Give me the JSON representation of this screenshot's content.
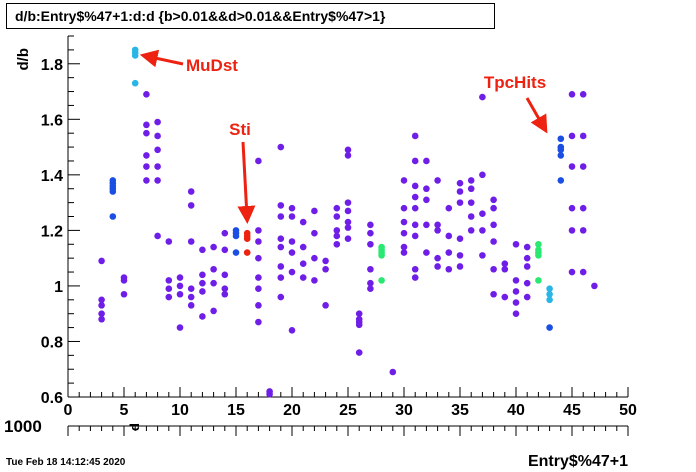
{
  "title": "d/b:Entry$%47+1:d:d {b>0.01&&d>0.01&&Entry$%47>1}",
  "footer_timestamp": "Tue Feb 18 14:12:45 2020",
  "colors": {
    "annotation": "#ee2211"
  },
  "chart_data": {
    "type": "scatter",
    "title": "d/b:Entry$%47+1:d:d {b>0.01&&d>0.01&&Entry$%47>1}",
    "xlabel": "Entry$%47+1",
    "ylabel": "d/b",
    "xlim": [
      0,
      50
    ],
    "ylim": [
      0.6,
      1.9
    ],
    "x_ticks": [
      "0",
      "5",
      "10",
      "15",
      "20",
      "25",
      "30",
      "35",
      "40",
      "45",
      "50"
    ],
    "y_ticks": [
      "0.6",
      "0.8",
      "1",
      "1.2",
      "1.4",
      "1.6",
      "1.8"
    ],
    "bottom_axis_labels": {
      "left_value": "1000",
      "marker": "d"
    },
    "grid": false,
    "annotations": [
      {
        "text": "MuDst",
        "point_to": [
          6,
          1.83
        ]
      },
      {
        "text": "Sti",
        "point_to": [
          16,
          1.2
        ]
      },
      {
        "text": "TpcHits",
        "point_to": [
          43,
          1.56
        ]
      }
    ],
    "points": [
      [
        3,
        1.09,
        "#6f1ee8"
      ],
      [
        3,
        0.95,
        "#6f1ee8"
      ],
      [
        3,
        0.93,
        "#6f1ee8"
      ],
      [
        3,
        0.9,
        "#6f1ee8"
      ],
      [
        3,
        0.88,
        "#6f1ee8"
      ],
      [
        4,
        1.38,
        "#1b4ee2"
      ],
      [
        4,
        1.37,
        "#1b4ee2"
      ],
      [
        4,
        1.36,
        "#1b4ee2"
      ],
      [
        4,
        1.35,
        "#1b4ee2"
      ],
      [
        4,
        1.34,
        "#1b4ee2"
      ],
      [
        4,
        1.25,
        "#1b4ee2"
      ],
      [
        5,
        1.03,
        "#6f1ee8"
      ],
      [
        5,
        1.02,
        "#6f1ee8"
      ],
      [
        5,
        0.97,
        "#6f1ee8"
      ],
      [
        6,
        1.85,
        "#29b6e6"
      ],
      [
        6,
        1.84,
        "#29b6e6"
      ],
      [
        6,
        1.83,
        "#29b6e6"
      ],
      [
        6,
        1.73,
        "#29b6e6"
      ],
      [
        7,
        1.69,
        "#6f1ee8"
      ],
      [
        7,
        1.58,
        "#6f1ee8"
      ],
      [
        7,
        1.55,
        "#6f1ee8"
      ],
      [
        7,
        1.47,
        "#6f1ee8"
      ],
      [
        7,
        1.43,
        "#6f1ee8"
      ],
      [
        7,
        1.38,
        "#6f1ee8"
      ],
      [
        8,
        1.59,
        "#6f1ee8"
      ],
      [
        8,
        1.54,
        "#6f1ee8"
      ],
      [
        8,
        1.49,
        "#6f1ee8"
      ],
      [
        8,
        1.43,
        "#6f1ee8"
      ],
      [
        8,
        1.38,
        "#6f1ee8"
      ],
      [
        8,
        1.18,
        "#6f1ee8"
      ],
      [
        9,
        1.16,
        "#6f1ee8"
      ],
      [
        9,
        1.02,
        "#6f1ee8"
      ],
      [
        9,
        0.99,
        "#6f1ee8"
      ],
      [
        9,
        0.96,
        "#6f1ee8"
      ],
      [
        10,
        1.03,
        "#6f1ee8"
      ],
      [
        10,
        1.0,
        "#6f1ee8"
      ],
      [
        10,
        0.97,
        "#6f1ee8"
      ],
      [
        10,
        0.85,
        "#6f1ee8"
      ],
      [
        11,
        1.34,
        "#6f1ee8"
      ],
      [
        11,
        1.29,
        "#6f1ee8"
      ],
      [
        11,
        1.16,
        "#6f1ee8"
      ],
      [
        11,
        0.99,
        "#6f1ee8"
      ],
      [
        11,
        0.96,
        "#6f1ee8"
      ],
      [
        11,
        0.93,
        "#6f1ee8"
      ],
      [
        12,
        1.13,
        "#6f1ee8"
      ],
      [
        12,
        1.04,
        "#6f1ee8"
      ],
      [
        12,
        1.01,
        "#6f1ee8"
      ],
      [
        12,
        0.98,
        "#6f1ee8"
      ],
      [
        12,
        0.89,
        "#6f1ee8"
      ],
      [
        13,
        1.14,
        "#6f1ee8"
      ],
      [
        13,
        1.06,
        "#6f1ee8"
      ],
      [
        13,
        1.01,
        "#6f1ee8"
      ],
      [
        13,
        0.91,
        "#6f1ee8"
      ],
      [
        14,
        1.19,
        "#6f1ee8"
      ],
      [
        14,
        1.13,
        "#6f1ee8"
      ],
      [
        14,
        1.04,
        "#6f1ee8"
      ],
      [
        14,
        0.99,
        "#6f1ee8"
      ],
      [
        14,
        0.97,
        "#6f1ee8"
      ],
      [
        15,
        1.2,
        "#1b4ee2"
      ],
      [
        15,
        1.19,
        "#1b4ee2"
      ],
      [
        15,
        1.18,
        "#1b4ee2"
      ],
      [
        15,
        1.12,
        "#1b4ee2"
      ],
      [
        16,
        1.19,
        "#ee2211"
      ],
      [
        16,
        1.18,
        "#ee2211"
      ],
      [
        16,
        1.17,
        "#ee2211"
      ],
      [
        16,
        1.12,
        "#ee2211"
      ],
      [
        17,
        1.45,
        "#6f1ee8"
      ],
      [
        17,
        1.2,
        "#6f1ee8"
      ],
      [
        17,
        1.16,
        "#6f1ee8"
      ],
      [
        17,
        1.1,
        "#6f1ee8"
      ],
      [
        17,
        1.03,
        "#6f1ee8"
      ],
      [
        17,
        0.99,
        "#6f1ee8"
      ],
      [
        17,
        0.93,
        "#6f1ee8"
      ],
      [
        17,
        0.87,
        "#6f1ee8"
      ],
      [
        18,
        0.62,
        "#6f1ee8"
      ],
      [
        18,
        0.61,
        "#6f1ee8"
      ],
      [
        19,
        1.5,
        "#6f1ee8"
      ],
      [
        19,
        1.29,
        "#6f1ee8"
      ],
      [
        19,
        1.25,
        "#6f1ee8"
      ],
      [
        19,
        1.17,
        "#6f1ee8"
      ],
      [
        19,
        1.14,
        "#6f1ee8"
      ],
      [
        19,
        1.07,
        "#6f1ee8"
      ],
      [
        19,
        1.03,
        "#6f1ee8"
      ],
      [
        19,
        0.96,
        "#6f1ee8"
      ],
      [
        20,
        1.28,
        "#6f1ee8"
      ],
      [
        20,
        1.25,
        "#6f1ee8"
      ],
      [
        20,
        1.16,
        "#6f1ee8"
      ],
      [
        20,
        1.12,
        "#6f1ee8"
      ],
      [
        20,
        1.05,
        "#6f1ee8"
      ],
      [
        20,
        0.84,
        "#6f1ee8"
      ],
      [
        21,
        1.23,
        "#6f1ee8"
      ],
      [
        21,
        1.14,
        "#6f1ee8"
      ],
      [
        21,
        1.08,
        "#6f1ee8"
      ],
      [
        21,
        1.03,
        "#6f1ee8"
      ],
      [
        22,
        1.27,
        "#6f1ee8"
      ],
      [
        22,
        1.19,
        "#6f1ee8"
      ],
      [
        22,
        1.1,
        "#6f1ee8"
      ],
      [
        22,
        1.02,
        "#6f1ee8"
      ],
      [
        23,
        1.09,
        "#6f1ee8"
      ],
      [
        23,
        1.06,
        "#6f1ee8"
      ],
      [
        23,
        0.93,
        "#6f1ee8"
      ],
      [
        24,
        1.28,
        "#6f1ee8"
      ],
      [
        24,
        1.25,
        "#6f1ee8"
      ],
      [
        24,
        1.2,
        "#6f1ee8"
      ],
      [
        24,
        1.18,
        "#6f1ee8"
      ],
      [
        24,
        1.15,
        "#6f1ee8"
      ],
      [
        25,
        1.49,
        "#6f1ee8"
      ],
      [
        25,
        1.47,
        "#6f1ee8"
      ],
      [
        25,
        1.3,
        "#6f1ee8"
      ],
      [
        25,
        1.27,
        "#6f1ee8"
      ],
      [
        25,
        1.23,
        "#6f1ee8"
      ],
      [
        25,
        1.21,
        "#6f1ee8"
      ],
      [
        25,
        1.17,
        "#6f1ee8"
      ],
      [
        26,
        0.9,
        "#6f1ee8"
      ],
      [
        26,
        0.88,
        "#6f1ee8"
      ],
      [
        26,
        0.87,
        "#6f1ee8"
      ],
      [
        26,
        0.86,
        "#6f1ee8"
      ],
      [
        26,
        0.76,
        "#6f1ee8"
      ],
      [
        27,
        1.22,
        "#6f1ee8"
      ],
      [
        27,
        1.19,
        "#6f1ee8"
      ],
      [
        27,
        1.15,
        "#6f1ee8"
      ],
      [
        27,
        1.06,
        "#6f1ee8"
      ],
      [
        27,
        1.01,
        "#6f1ee8"
      ],
      [
        27,
        0.99,
        "#6f1ee8"
      ],
      [
        28,
        1.14,
        "#2ae872"
      ],
      [
        28,
        1.13,
        "#2ae872"
      ],
      [
        28,
        1.12,
        "#2ae872"
      ],
      [
        28,
        1.11,
        "#2ae872"
      ],
      [
        28,
        1.02,
        "#2ae872"
      ],
      [
        29,
        0.69,
        "#6f1ee8"
      ],
      [
        30,
        1.38,
        "#6f1ee8"
      ],
      [
        30,
        1.28,
        "#6f1ee8"
      ],
      [
        30,
        1.23,
        "#6f1ee8"
      ],
      [
        30,
        1.19,
        "#6f1ee8"
      ],
      [
        30,
        1.14,
        "#6f1ee8"
      ],
      [
        30,
        1.12,
        "#6f1ee8"
      ],
      [
        31,
        1.54,
        "#6f1ee8"
      ],
      [
        31,
        1.45,
        "#6f1ee8"
      ],
      [
        31,
        1.36,
        "#6f1ee8"
      ],
      [
        31,
        1.32,
        "#6f1ee8"
      ],
      [
        31,
        1.28,
        "#6f1ee8"
      ],
      [
        31,
        1.22,
        "#6f1ee8"
      ],
      [
        31,
        1.18,
        "#6f1ee8"
      ],
      [
        31,
        1.06,
        "#6f1ee8"
      ],
      [
        31,
        1.03,
        "#6f1ee8"
      ],
      [
        32,
        1.45,
        "#6f1ee8"
      ],
      [
        32,
        1.35,
        "#6f1ee8"
      ],
      [
        32,
        1.31,
        "#6f1ee8"
      ],
      [
        32,
        1.22,
        "#6f1ee8"
      ],
      [
        32,
        1.12,
        "#6f1ee8"
      ],
      [
        33,
        1.38,
        "#6f1ee8"
      ],
      [
        33,
        1.22,
        "#6f1ee8"
      ],
      [
        33,
        1.2,
        "#6f1ee8"
      ],
      [
        33,
        1.1,
        "#6f1ee8"
      ],
      [
        33,
        1.07,
        "#6f1ee8"
      ],
      [
        34,
        1.28,
        "#6f1ee8"
      ],
      [
        34,
        1.18,
        "#6f1ee8"
      ],
      [
        34,
        1.12,
        "#6f1ee8"
      ],
      [
        34,
        1.06,
        "#6f1ee8"
      ],
      [
        35,
        1.37,
        "#6f1ee8"
      ],
      [
        35,
        1.34,
        "#6f1ee8"
      ],
      [
        35,
        1.3,
        "#6f1ee8"
      ],
      [
        35,
        1.17,
        "#6f1ee8"
      ],
      [
        35,
        1.11,
        "#6f1ee8"
      ],
      [
        35,
        1.07,
        "#6f1ee8"
      ],
      [
        36,
        1.38,
        "#6f1ee8"
      ],
      [
        36,
        1.35,
        "#6f1ee8"
      ],
      [
        36,
        1.3,
        "#6f1ee8"
      ],
      [
        36,
        1.25,
        "#6f1ee8"
      ],
      [
        36,
        1.2,
        "#6f1ee8"
      ],
      [
        37,
        1.68,
        "#6f1ee8"
      ],
      [
        37,
        1.4,
        "#6f1ee8"
      ],
      [
        37,
        1.26,
        "#6f1ee8"
      ],
      [
        37,
        1.2,
        "#6f1ee8"
      ],
      [
        37,
        1.11,
        "#6f1ee8"
      ],
      [
        38,
        1.31,
        "#6f1ee8"
      ],
      [
        38,
        1.28,
        "#6f1ee8"
      ],
      [
        38,
        1.22,
        "#6f1ee8"
      ],
      [
        38,
        1.16,
        "#6f1ee8"
      ],
      [
        38,
        1.06,
        "#6f1ee8"
      ],
      [
        38,
        0.97,
        "#6f1ee8"
      ],
      [
        39,
        1.08,
        "#6f1ee8"
      ],
      [
        39,
        1.06,
        "#6f1ee8"
      ],
      [
        39,
        0.96,
        "#6f1ee8"
      ],
      [
        40,
        1.15,
        "#6f1ee8"
      ],
      [
        40,
        1.02,
        "#6f1ee8"
      ],
      [
        40,
        0.98,
        "#6f1ee8"
      ],
      [
        40,
        0.94,
        "#6f1ee8"
      ],
      [
        40,
        0.9,
        "#6f1ee8"
      ],
      [
        41,
        1.14,
        "#6f1ee8"
      ],
      [
        41,
        1.1,
        "#6f1ee8"
      ],
      [
        41,
        1.07,
        "#6f1ee8"
      ],
      [
        41,
        1.01,
        "#6f1ee8"
      ],
      [
        41,
        0.96,
        "#6f1ee8"
      ],
      [
        42,
        1.15,
        "#2ae872"
      ],
      [
        42,
        1.13,
        "#2ae872"
      ],
      [
        42,
        1.12,
        "#2ae872"
      ],
      [
        42,
        1.11,
        "#2ae872"
      ],
      [
        42,
        1.02,
        "#2ae872"
      ],
      [
        43,
        0.99,
        "#29b6e6"
      ],
      [
        43,
        0.97,
        "#29b6e6"
      ],
      [
        43,
        0.95,
        "#29b6e6"
      ],
      [
        43,
        0.85,
        "#1b4ee2"
      ],
      [
        44,
        1.53,
        "#1b4ee2"
      ],
      [
        44,
        1.5,
        "#1b4ee2"
      ],
      [
        44,
        1.49,
        "#1b4ee2"
      ],
      [
        44,
        1.47,
        "#1b4ee2"
      ],
      [
        44,
        1.38,
        "#1b4ee2"
      ],
      [
        45,
        1.69,
        "#6f1ee8"
      ],
      [
        45,
        1.54,
        "#6f1ee8"
      ],
      [
        45,
        1.43,
        "#6f1ee8"
      ],
      [
        45,
        1.28,
        "#6f1ee8"
      ],
      [
        45,
        1.2,
        "#6f1ee8"
      ],
      [
        45,
        1.05,
        "#6f1ee8"
      ],
      [
        46,
        1.69,
        "#6f1ee8"
      ],
      [
        46,
        1.54,
        "#6f1ee8"
      ],
      [
        46,
        1.43,
        "#6f1ee8"
      ],
      [
        46,
        1.28,
        "#6f1ee8"
      ],
      [
        46,
        1.2,
        "#6f1ee8"
      ],
      [
        46,
        1.05,
        "#6f1ee8"
      ],
      [
        47,
        1.0,
        "#6f1ee8"
      ]
    ]
  }
}
